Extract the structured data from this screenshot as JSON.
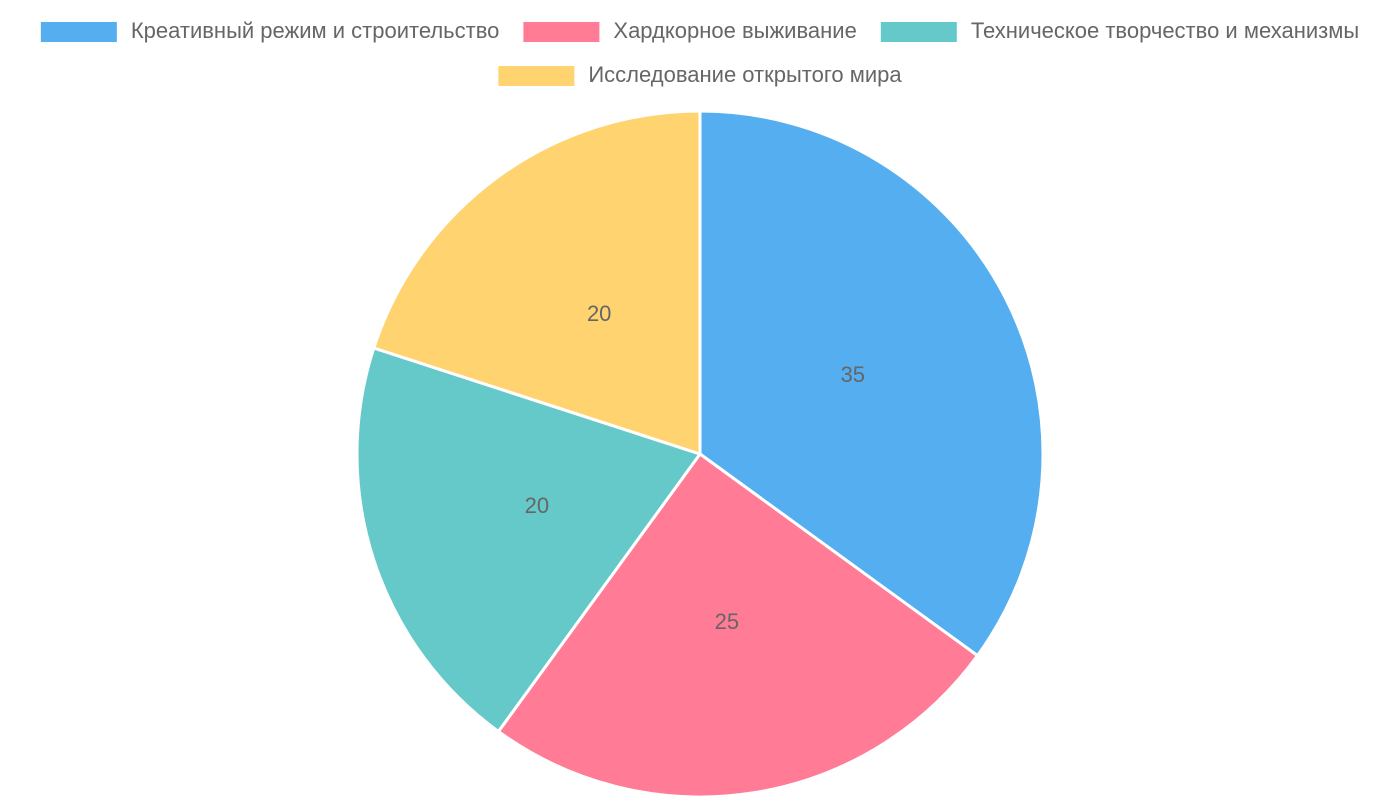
{
  "chart_data": {
    "type": "pie",
    "categories": [
      "Креативный режим и строительство",
      "Хардкорное выживание",
      "Техническое творчество и механизмы",
      "Исследование открытого мира"
    ],
    "values": [
      35,
      25,
      20,
      20
    ],
    "colors": [
      "#54aeef",
      "#ff7b96",
      "#66c9c9",
      "#ffd470"
    ],
    "legend": "top"
  }
}
